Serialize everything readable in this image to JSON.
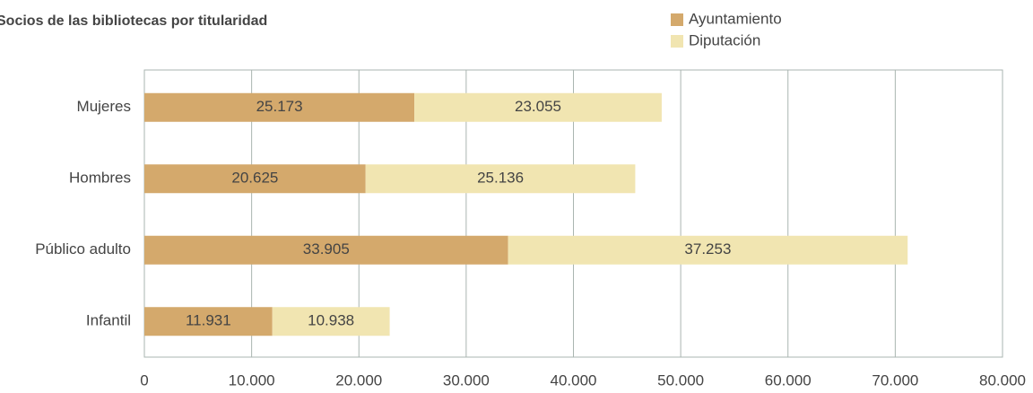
{
  "chart_data": {
    "type": "hbar-stacked",
    "title": "Socios de las bibliotecas por titularidad",
    "categories": [
      "Mujeres",
      "Hombres",
      "Público adulto",
      "Infantil"
    ],
    "series": [
      {
        "name": "Ayuntamiento",
        "color": "#d4a96c",
        "values": [
          25173,
          20625,
          33905,
          11931
        ],
        "value_labels": [
          "25.173",
          "20.625",
          "33.905",
          "11.931"
        ]
      },
      {
        "name": "Diputación",
        "color": "#f1e5b1",
        "values": [
          23055,
          25136,
          37253,
          10938
        ],
        "value_labels": [
          "23.055",
          "25.136",
          "37.253",
          "10.938"
        ]
      }
    ],
    "xlim": [
      0,
      80000
    ],
    "xticks": [
      0,
      {
        "value": 10000,
        "label": "10.000"
      },
      {
        "value": 20000,
        "label": "20.000"
      },
      {
        "value": 30000,
        "label": "30.000"
      },
      {
        "value": 40000,
        "label": "40.000"
      },
      {
        "value": 50000,
        "label": "50.000"
      },
      {
        "value": 60000,
        "label": "60.000"
      },
      {
        "value": 70000,
        "label": "70.000"
      },
      {
        "value": 80000,
        "label": "80.000"
      }
    ],
    "grid": true,
    "legend": "top-right"
  }
}
